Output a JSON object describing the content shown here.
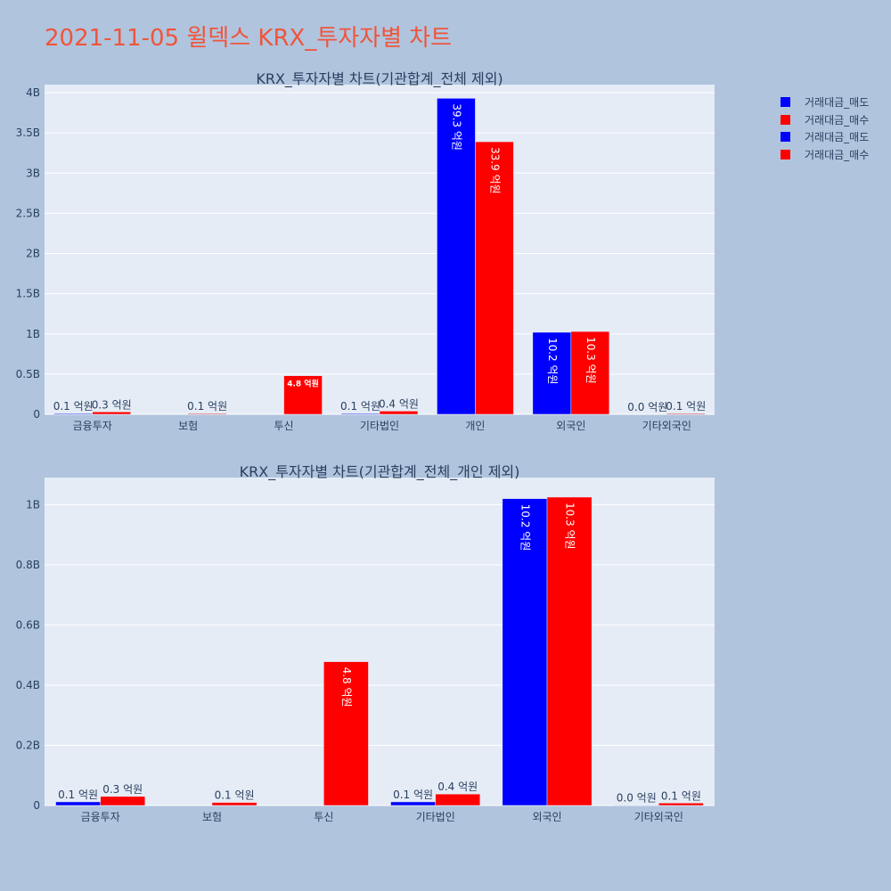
{
  "page": {
    "title": "2021-11-05 윌덱스 KRX_투자자별 차트",
    "background": "#b0c4de",
    "title_color": "#ef553b"
  },
  "legend": {
    "items": [
      {
        "label": "거래대금_매도",
        "color": "#0000ff"
      },
      {
        "label": "거래대금_매수",
        "color": "#ff0000"
      },
      {
        "label": "거래대금_매도",
        "color": "#0000ff"
      },
      {
        "label": "거래대금_매수",
        "color": "#ff0000"
      }
    ]
  },
  "chart_data": [
    {
      "type": "bar",
      "title": "KRX_투자자별 차트(기관합계_전체 제외)",
      "categories": [
        "금융투자",
        "보험",
        "투신",
        "기타법인",
        "개인",
        "외국인",
        "기타외국인"
      ],
      "ylim": [
        0,
        4.1
      ],
      "yticks": [
        0,
        0.5,
        1,
        1.5,
        2,
        2.5,
        3,
        3.5,
        4
      ],
      "ytick_labels": [
        "0",
        "0.5B",
        "1B",
        "1.5B",
        "2B",
        "2.5B",
        "3B",
        "3.5B",
        "4B"
      ],
      "grid": true,
      "series": [
        {
          "name": "거래대금_매도",
          "color": "#0000ff",
          "values": [
            0.01,
            0.0,
            0.0,
            0.01,
            3.93,
            1.02,
            0.0
          ],
          "labels": [
            "0.1 억원",
            "",
            "",
            "0.1 억원",
            "39.3 억원",
            "10.2 억원",
            "0.0 억원"
          ]
        },
        {
          "name": "거래대금_매수",
          "color": "#ff0000",
          "values": [
            0.03,
            0.01,
            0.48,
            0.04,
            3.39,
            1.03,
            0.01
          ],
          "labels": [
            "0.3 억원",
            "0.1 억원",
            "4.8 억원",
            "0.4 억원",
            "33.9 억원",
            "10.3 억원",
            "0.1 억원"
          ]
        }
      ]
    },
    {
      "type": "bar",
      "title": "KRX_투자자별 차트(기관합계_전체_개인 제외)",
      "categories": [
        "금융투자",
        "보험",
        "투신",
        "기타법인",
        "외국인",
        "기타외국인"
      ],
      "ylim": [
        0,
        1.09
      ],
      "yticks": [
        0,
        0.2,
        0.4,
        0.6,
        0.8,
        1
      ],
      "ytick_labels": [
        "0",
        "0.2B",
        "0.4B",
        "0.6B",
        "0.8B",
        "1B"
      ],
      "grid": true,
      "series": [
        {
          "name": "거래대금_매도",
          "color": "#0000ff",
          "values": [
            0.012,
            0.0,
            0.0,
            0.012,
            1.02,
            0.001
          ],
          "labels": [
            "0.1 억원",
            "",
            "",
            "0.1 억원",
            "10.2 억원",
            "0.0 억원"
          ]
        },
        {
          "name": "거래대금_매수",
          "color": "#ff0000",
          "values": [
            0.03,
            0.01,
            0.478,
            0.038,
            1.025,
            0.008
          ],
          "labels": [
            "0.3 억원",
            "0.1 억원",
            "4.8 억원",
            "0.4 억원",
            "10.3 억원",
            "0.1 억원"
          ]
        }
      ]
    }
  ]
}
